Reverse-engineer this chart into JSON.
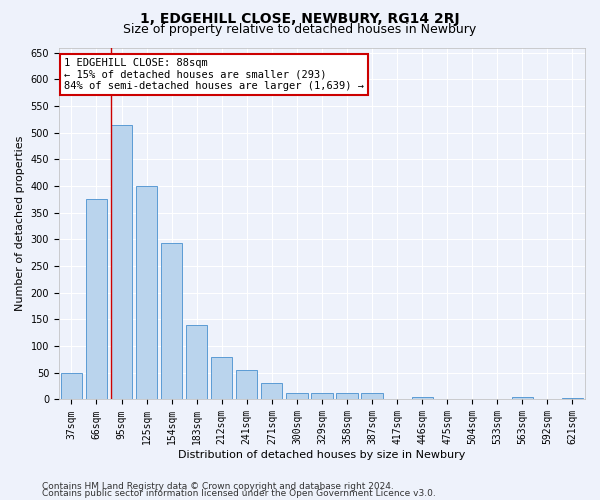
{
  "title": "1, EDGEHILL CLOSE, NEWBURY, RG14 2RJ",
  "subtitle": "Size of property relative to detached houses in Newbury",
  "xlabel": "Distribution of detached houses by size in Newbury",
  "ylabel": "Number of detached properties",
  "categories": [
    "37sqm",
    "66sqm",
    "95sqm",
    "125sqm",
    "154sqm",
    "183sqm",
    "212sqm",
    "241sqm",
    "271sqm",
    "300sqm",
    "329sqm",
    "358sqm",
    "387sqm",
    "417sqm",
    "446sqm",
    "475sqm",
    "504sqm",
    "533sqm",
    "563sqm",
    "592sqm",
    "621sqm"
  ],
  "values": [
    50,
    375,
    515,
    400,
    293,
    140,
    80,
    55,
    30,
    12,
    12,
    12,
    13,
    0,
    4,
    0,
    0,
    0,
    4,
    0,
    2
  ],
  "bar_color": "#bad4ed",
  "bar_edge_color": "#5b9bd5",
  "vline_x_index": 2,
  "vline_color": "#cc0000",
  "annotation_text": "1 EDGEHILL CLOSE: 88sqm\n← 15% of detached houses are smaller (293)\n84% of semi-detached houses are larger (1,639) →",
  "annotation_box_facecolor": "#ffffff",
  "annotation_box_edgecolor": "#cc0000",
  "ylim": [
    0,
    660
  ],
  "yticks": [
    0,
    50,
    100,
    150,
    200,
    250,
    300,
    350,
    400,
    450,
    500,
    550,
    600,
    650
  ],
  "footer_line1": "Contains HM Land Registry data © Crown copyright and database right 2024.",
  "footer_line2": "Contains public sector information licensed under the Open Government Licence v3.0.",
  "background_color": "#eef2fb",
  "plot_bg_color": "#eef2fb",
  "grid_color": "#ffffff",
  "title_fontsize": 10,
  "subtitle_fontsize": 9,
  "axis_label_fontsize": 8,
  "tick_fontsize": 7,
  "annotation_fontsize": 7.5,
  "footer_fontsize": 6.5
}
